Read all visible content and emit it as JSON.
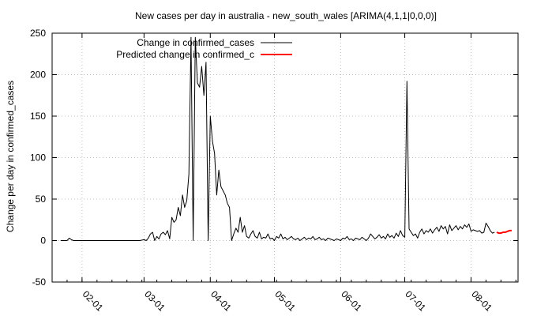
{
  "chart_data": {
    "type": "line",
    "title": "New cases per day in australia - new_south_wales [ARIMA(4,1,1|0,0,0)]",
    "xlabel": "",
    "ylabel": "Change per day in confirmed_cases",
    "ylim": [
      -50,
      250
    ],
    "yticks": [
      -50,
      0,
      50,
      100,
      150,
      200,
      250
    ],
    "xlim": [
      "2020-01-18",
      "2020-08-23"
    ],
    "xticks": [
      {
        "date": "2020-02-01",
        "label": "02-01"
      },
      {
        "date": "2020-03-01",
        "label": "03-01"
      },
      {
        "date": "2020-04-01",
        "label": "04-01"
      },
      {
        "date": "2020-05-01",
        "label": "05-01"
      },
      {
        "date": "2020-06-01",
        "label": "06-01"
      },
      {
        "date": "2020-07-01",
        "label": "07-01"
      },
      {
        "date": "2020-08-01",
        "label": "08-01"
      }
    ],
    "grid": true,
    "legend_position": "top-left",
    "series": [
      {
        "name": "Change in confirmed_cases",
        "color": "#000000",
        "points": [
          [
            "2020-01-22",
            0
          ],
          [
            "2020-01-25",
            0
          ],
          [
            "2020-01-26",
            3
          ],
          [
            "2020-01-27",
            1
          ],
          [
            "2020-01-28",
            0
          ],
          [
            "2020-02-05",
            0
          ],
          [
            "2020-02-15",
            0
          ],
          [
            "2020-02-25",
            0
          ],
          [
            "2020-02-28",
            0
          ],
          [
            "2020-03-01",
            1
          ],
          [
            "2020-03-02",
            0
          ],
          [
            "2020-03-03",
            3
          ],
          [
            "2020-03-04",
            8
          ],
          [
            "2020-03-05",
            10
          ],
          [
            "2020-03-06",
            0
          ],
          [
            "2020-03-07",
            5
          ],
          [
            "2020-03-08",
            2
          ],
          [
            "2020-03-09",
            8
          ],
          [
            "2020-03-10",
            10
          ],
          [
            "2020-03-11",
            7
          ],
          [
            "2020-03-12",
            12
          ],
          [
            "2020-03-13",
            2
          ],
          [
            "2020-03-14",
            28
          ],
          [
            "2020-03-15",
            22
          ],
          [
            "2020-03-16",
            25
          ],
          [
            "2020-03-17",
            40
          ],
          [
            "2020-03-18",
            30
          ],
          [
            "2020-03-19",
            55
          ],
          [
            "2020-03-20",
            40
          ],
          [
            "2020-03-21",
            48
          ],
          [
            "2020-03-22",
            80
          ],
          [
            "2020-03-23",
            245
          ],
          [
            "2020-03-24",
            0
          ],
          [
            "2020-03-25",
            245
          ],
          [
            "2020-03-26",
            190
          ],
          [
            "2020-03-27",
            185
          ],
          [
            "2020-03-28",
            210
          ],
          [
            "2020-03-29",
            175
          ],
          [
            "2020-03-30",
            215
          ],
          [
            "2020-03-31",
            0
          ],
          [
            "2020-04-01",
            150
          ],
          [
            "2020-04-02",
            120
          ],
          [
            "2020-04-03",
            105
          ],
          [
            "2020-04-04",
            55
          ],
          [
            "2020-04-05",
            85
          ],
          [
            "2020-04-06",
            65
          ],
          [
            "2020-04-07",
            60
          ],
          [
            "2020-04-08",
            55
          ],
          [
            "2020-04-09",
            45
          ],
          [
            "2020-04-10",
            40
          ],
          [
            "2020-04-11",
            0
          ],
          [
            "2020-04-12",
            8
          ],
          [
            "2020-04-13",
            15
          ],
          [
            "2020-04-14",
            10
          ],
          [
            "2020-04-15",
            28
          ],
          [
            "2020-04-16",
            10
          ],
          [
            "2020-04-17",
            18
          ],
          [
            "2020-04-18",
            5
          ],
          [
            "2020-04-19",
            3
          ],
          [
            "2020-04-20",
            8
          ],
          [
            "2020-04-21",
            12
          ],
          [
            "2020-04-22",
            5
          ],
          [
            "2020-04-23",
            3
          ],
          [
            "2020-04-24",
            10
          ],
          [
            "2020-04-25",
            2
          ],
          [
            "2020-04-26",
            4
          ],
          [
            "2020-04-27",
            3
          ],
          [
            "2020-04-28",
            8
          ],
          [
            "2020-04-29",
            2
          ],
          [
            "2020-04-30",
            3
          ],
          [
            "2020-05-01",
            0
          ],
          [
            "2020-05-02",
            5
          ],
          [
            "2020-05-03",
            3
          ],
          [
            "2020-05-04",
            8
          ],
          [
            "2020-05-05",
            2
          ],
          [
            "2020-05-06",
            4
          ],
          [
            "2020-05-07",
            1
          ],
          [
            "2020-05-08",
            3
          ],
          [
            "2020-05-09",
            5
          ],
          [
            "2020-05-10",
            2
          ],
          [
            "2020-05-11",
            1
          ],
          [
            "2020-05-12",
            3
          ],
          [
            "2020-05-13",
            0
          ],
          [
            "2020-05-14",
            2
          ],
          [
            "2020-05-15",
            4
          ],
          [
            "2020-05-16",
            1
          ],
          [
            "2020-05-17",
            3
          ],
          [
            "2020-05-18",
            2
          ],
          [
            "2020-05-19",
            5
          ],
          [
            "2020-05-20",
            1
          ],
          [
            "2020-05-21",
            2
          ],
          [
            "2020-05-22",
            4
          ],
          [
            "2020-05-23",
            1
          ],
          [
            "2020-05-24",
            2
          ],
          [
            "2020-05-25",
            0
          ],
          [
            "2020-05-26",
            3
          ],
          [
            "2020-05-27",
            2
          ],
          [
            "2020-05-28",
            1
          ],
          [
            "2020-05-29",
            0
          ],
          [
            "2020-05-30",
            2
          ],
          [
            "2020-05-31",
            1
          ],
          [
            "2020-06-01",
            0
          ],
          [
            "2020-06-02",
            3
          ],
          [
            "2020-06-03",
            2
          ],
          [
            "2020-06-04",
            5
          ],
          [
            "2020-06-05",
            1
          ],
          [
            "2020-06-06",
            2
          ],
          [
            "2020-06-07",
            0
          ],
          [
            "2020-06-08",
            3
          ],
          [
            "2020-06-09",
            2
          ],
          [
            "2020-06-10",
            1
          ],
          [
            "2020-06-11",
            4
          ],
          [
            "2020-06-12",
            2
          ],
          [
            "2020-06-13",
            0
          ],
          [
            "2020-06-14",
            3
          ],
          [
            "2020-06-15",
            8
          ],
          [
            "2020-06-16",
            5
          ],
          [
            "2020-06-17",
            2
          ],
          [
            "2020-06-18",
            4
          ],
          [
            "2020-06-19",
            7
          ],
          [
            "2020-06-20",
            3
          ],
          [
            "2020-06-21",
            5
          ],
          [
            "2020-06-22",
            2
          ],
          [
            "2020-06-23",
            8
          ],
          [
            "2020-06-24",
            4
          ],
          [
            "2020-06-25",
            6
          ],
          [
            "2020-06-26",
            3
          ],
          [
            "2020-06-27",
            9
          ],
          [
            "2020-06-28",
            5
          ],
          [
            "2020-06-29",
            12
          ],
          [
            "2020-06-30",
            6
          ],
          [
            "2020-07-01",
            4
          ],
          [
            "2020-07-02",
            192
          ],
          [
            "2020-07-03",
            14
          ],
          [
            "2020-07-04",
            10
          ],
          [
            "2020-07-05",
            6
          ],
          [
            "2020-07-06",
            8
          ],
          [
            "2020-07-07",
            3
          ],
          [
            "2020-07-08",
            10
          ],
          [
            "2020-07-09",
            14
          ],
          [
            "2020-07-10",
            8
          ],
          [
            "2020-07-11",
            12
          ],
          [
            "2020-07-12",
            10
          ],
          [
            "2020-07-13",
            14
          ],
          [
            "2020-07-14",
            9
          ],
          [
            "2020-07-15",
            13
          ],
          [
            "2020-07-16",
            16
          ],
          [
            "2020-07-17",
            11
          ],
          [
            "2020-07-18",
            18
          ],
          [
            "2020-07-19",
            14
          ],
          [
            "2020-07-20",
            17
          ],
          [
            "2020-07-21",
            8
          ],
          [
            "2020-07-22",
            19
          ],
          [
            "2020-07-23",
            12
          ],
          [
            "2020-07-24",
            15
          ],
          [
            "2020-07-25",
            18
          ],
          [
            "2020-07-26",
            13
          ],
          [
            "2020-07-27",
            17
          ],
          [
            "2020-07-28",
            14
          ],
          [
            "2020-07-29",
            19
          ],
          [
            "2020-07-30",
            16
          ],
          [
            "2020-07-31",
            20
          ],
          [
            "2020-08-01",
            11
          ],
          [
            "2020-08-02",
            13
          ],
          [
            "2020-08-03",
            12
          ],
          [
            "2020-08-04",
            11
          ],
          [
            "2020-08-05",
            12
          ],
          [
            "2020-08-06",
            9
          ],
          [
            "2020-08-07",
            10
          ],
          [
            "2020-08-08",
            21
          ],
          [
            "2020-08-09",
            17
          ],
          [
            "2020-08-10",
            12
          ],
          [
            "2020-08-11",
            9
          ],
          [
            "2020-08-12",
            10
          ]
        ]
      },
      {
        "name": "Predicted change in confirmed_c",
        "color": "#ff0000",
        "points": [
          [
            "2020-08-13",
            10
          ],
          [
            "2020-08-14",
            9
          ],
          [
            "2020-08-15",
            9
          ],
          [
            "2020-08-16",
            10
          ],
          [
            "2020-08-17",
            10
          ],
          [
            "2020-08-18",
            11
          ],
          [
            "2020-08-19",
            12
          ],
          [
            "2020-08-20",
            12
          ]
        ]
      }
    ]
  }
}
